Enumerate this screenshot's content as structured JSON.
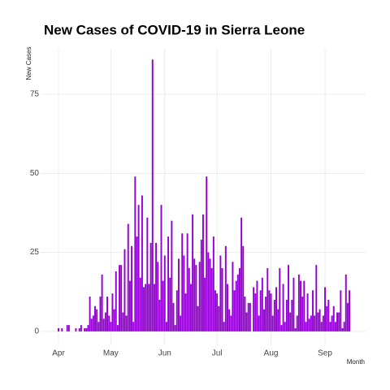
{
  "chart_data": {
    "type": "bar",
    "title": "New Cases of COVID-19 in Sierra Leone",
    "y_label": "New Cases",
    "x_label": "Month",
    "categories": [
      "Apr",
      null,
      null,
      null,
      null,
      null,
      null,
      null,
      null,
      null,
      null,
      null,
      null,
      null,
      null,
      null,
      null,
      null,
      null,
      null,
      null,
      null,
      null,
      null,
      null,
      null,
      null,
      null,
      null,
      null,
      "May",
      null,
      null,
      null,
      null,
      null,
      null,
      null,
      null,
      null,
      null,
      null,
      null,
      null,
      null,
      null,
      null,
      null,
      null,
      null,
      null,
      null,
      null,
      null,
      null,
      null,
      null,
      null,
      null,
      null,
      null,
      "Jun",
      null,
      null,
      null,
      null,
      null,
      null,
      null,
      null,
      null,
      null,
      null,
      null,
      null,
      null,
      null,
      null,
      null,
      null,
      null,
      null,
      null,
      null,
      null,
      null,
      null,
      null,
      null,
      null,
      null,
      "Jul",
      null,
      null,
      null,
      null,
      null,
      null,
      null,
      null,
      null,
      null,
      null,
      null,
      null,
      null,
      null,
      null,
      null,
      null,
      null,
      null,
      null,
      null,
      null,
      null,
      null,
      null,
      null,
      null,
      null,
      null,
      "Aug",
      null,
      null,
      null,
      null,
      null,
      null,
      null,
      null,
      null,
      null,
      null,
      null,
      null,
      null,
      null,
      null,
      null,
      null,
      null,
      null,
      null,
      null,
      null,
      null,
      null,
      null,
      null,
      null,
      null,
      null,
      "Sep",
      null,
      null,
      null,
      null,
      null,
      null,
      null,
      null,
      null,
      null,
      null,
      null,
      null,
      null
    ],
    "values": [
      1,
      0,
      1,
      0,
      0,
      2,
      2,
      0,
      0,
      0,
      1,
      0,
      1,
      2,
      0,
      1,
      1,
      2,
      11,
      4,
      5,
      8,
      7,
      3,
      11,
      18,
      4,
      6,
      11,
      5,
      3,
      12,
      7,
      19,
      2,
      21,
      21,
      6,
      26,
      5,
      34,
      16,
      27,
      3,
      49,
      30,
      40,
      17,
      43,
      14,
      15,
      36,
      15,
      28,
      86,
      15,
      28,
      22,
      10,
      40,
      16,
      24,
      3,
      30,
      17,
      35,
      9,
      2,
      13,
      23,
      5,
      31,
      24,
      12,
      31,
      20,
      15,
      37,
      23,
      21,
      8,
      22,
      29,
      37,
      17,
      49,
      25,
      23,
      20,
      30,
      13,
      12,
      8,
      24,
      20,
      3,
      27,
      15,
      7,
      5,
      22,
      13,
      16,
      18,
      20,
      36,
      27,
      11,
      6,
      9,
      9,
      0,
      14,
      12,
      16,
      5,
      13,
      17,
      7,
      11,
      20,
      13,
      12,
      5,
      10,
      14,
      7,
      20,
      2,
      15,
      3,
      10,
      21,
      6,
      10,
      17,
      1,
      5,
      18,
      16,
      11,
      16,
      3,
      12,
      4,
      5,
      13,
      5,
      21,
      6,
      7,
      3,
      5,
      14,
      8,
      10,
      3,
      5,
      8,
      3,
      6,
      6,
      13,
      1,
      3,
      18,
      9,
      13
    ],
    "color": "#9400d3",
    "ylim": [
      -4.4,
      89.4
    ],
    "yticks": [
      0,
      25,
      50,
      75
    ],
    "grid": true
  }
}
